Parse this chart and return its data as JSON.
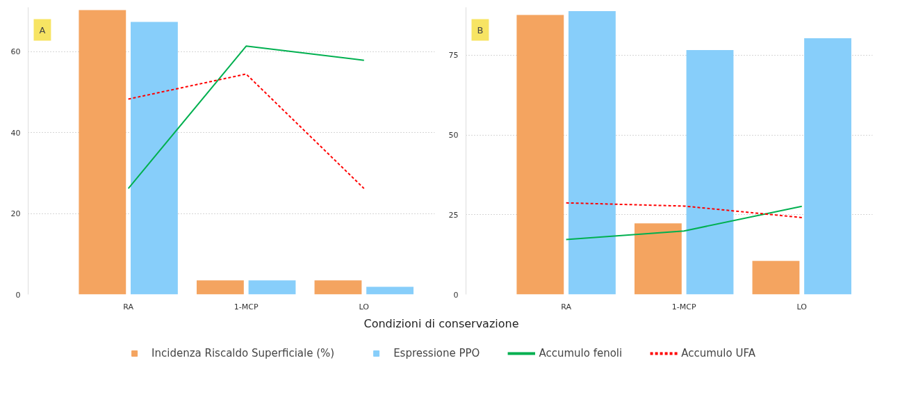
{
  "chart_data": [
    {
      "type": "bar",
      "annotations": [
        "A"
      ],
      "xlabel": "Condizioni di conservazione",
      "categories": [
        "RA",
        "1-MCP",
        "LO"
      ],
      "ylim": [
        0,
        71
      ],
      "yticks": [
        0,
        20,
        40,
        60
      ],
      "grid": "y",
      "legend": "bottom",
      "series": [
        {
          "name": "Incidenza Riscaldo Superficiale (%)",
          "color": "#f4a460",
          "values": [
            70.3,
            3.5,
            3.5
          ]
        },
        {
          "name": "Espressione PPO",
          "color": "#87cefa",
          "values": [
            67.4,
            3.5,
            1.9
          ]
        },
        {
          "name": "Accumulo fenoli",
          "type": "line",
          "color": "#00b050",
          "line_style": "solid",
          "values": [
            26.2,
            61.4,
            57.9
          ]
        },
        {
          "name": "Accumulo UFA",
          "type": "line",
          "color": "#ff0000",
          "line_style": "dashed",
          "values": [
            48.3,
            54.5,
            26.2
          ]
        }
      ]
    },
    {
      "type": "bar",
      "annotations": [
        "B"
      ],
      "categories": [
        "RA",
        "1-MCP",
        "LO"
      ],
      "ylim": [
        0,
        90
      ],
      "yticks": [
        0,
        25,
        50,
        75
      ],
      "grid": "y",
      "series": [
        {
          "color": "#f4a460",
          "values": [
            87.6,
            22.3,
            10.5
          ]
        },
        {
          "color": "#87cefa",
          "values": [
            88.8,
            76.6,
            80.3
          ]
        },
        {
          "type": "line",
          "color": "#00b050",
          "line_style": "solid",
          "values": [
            17.2,
            19.9,
            27.6
          ]
        },
        {
          "type": "line",
          "color": "#ff0000",
          "line_style": "dashed",
          "values": [
            28.7,
            27.7,
            24.1
          ]
        }
      ]
    }
  ]
}
